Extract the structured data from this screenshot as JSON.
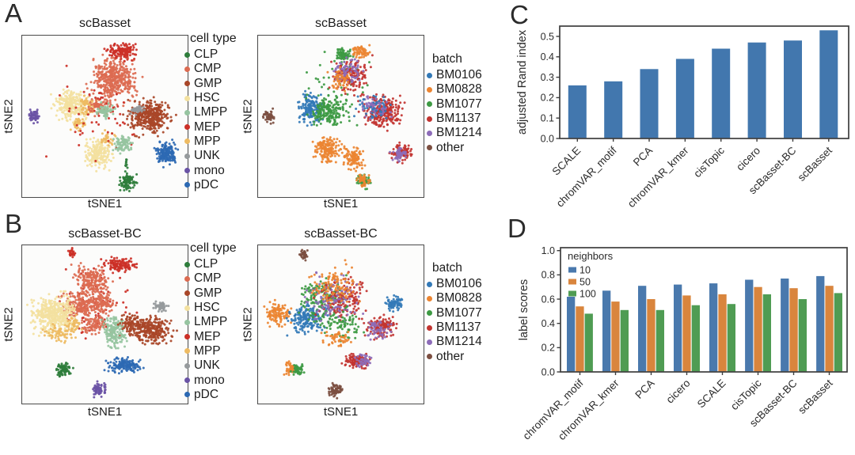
{
  "panel_labels": {
    "A": "A",
    "B": "B",
    "C": "C",
    "D": "D"
  },
  "palette": {
    "cell_type": {
      "CLP": "#2e7d3b",
      "CMP": "#dc6b51",
      "GMP": "#a94628",
      "HSC": "#f3e1a0",
      "LMPP": "#96c4a0",
      "MEP": "#cc3027",
      "MPP": "#eebb62",
      "UNK": "#969a9c",
      "mono": "#6a53a5",
      "pDC": "#2c69b3"
    },
    "batch": {
      "BM0106": "#3379b7",
      "BM0828": "#ec8532",
      "BM1077": "#3d9a43",
      "BM1137": "#c23431",
      "BM1214": "#8d6cb9",
      "other": "#7c4f41"
    }
  },
  "legends": {
    "cell_type": {
      "title": "cell type",
      "items": [
        "CLP",
        "CMP",
        "GMP",
        "HSC",
        "LMPP",
        "MEP",
        "MPP",
        "UNK",
        "mono",
        "pDC"
      ]
    },
    "batch": {
      "title": "batch",
      "items": [
        "BM0106",
        "BM0828",
        "BM1077",
        "BM1137",
        "BM1214",
        "other"
      ]
    }
  },
  "chart_data": [
    {
      "type": "scatter",
      "id": "A-left",
      "title": "scBasset",
      "color_by": "cell type",
      "color_by_key": "cell_type",
      "xlabel": "tSNE1",
      "ylabel": "tSNE2",
      "clusters_fields": [
        "color",
        "x",
        "y",
        "rx",
        "ry",
        "n"
      ],
      "clusters": [
        [
          "mono",
          0.07,
          0.5,
          0.03,
          0.035,
          55
        ],
        [
          "HSC",
          0.3,
          0.44,
          0.085,
          0.09,
          260
        ],
        [
          "HSC",
          0.46,
          0.73,
          0.075,
          0.085,
          200
        ],
        [
          "MPP",
          0.4,
          0.44,
          0.05,
          0.06,
          60
        ],
        [
          "MPP",
          0.35,
          0.55,
          0.05,
          0.04,
          35
        ],
        [
          "MPP",
          0.52,
          0.64,
          0.04,
          0.04,
          30
        ],
        [
          "CMP",
          0.56,
          0.27,
          0.12,
          0.13,
          420
        ],
        [
          "CMP",
          0.47,
          0.44,
          0.06,
          0.05,
          70
        ],
        [
          "MEP",
          0.6,
          0.1,
          0.085,
          0.05,
          130
        ],
        [
          "MEP",
          0.5,
          0.5,
          0.28,
          0.25,
          60
        ],
        [
          "GMP",
          0.77,
          0.5,
          0.115,
          0.095,
          380
        ],
        [
          "LMPP",
          0.5,
          0.47,
          0.05,
          0.04,
          60
        ],
        [
          "LMPP",
          0.61,
          0.68,
          0.055,
          0.055,
          90
        ],
        [
          "UNK",
          0.7,
          0.46,
          0.04,
          0.025,
          45
        ],
        [
          "pDC",
          0.87,
          0.73,
          0.06,
          0.065,
          170
        ],
        [
          "CLP",
          0.64,
          0.91,
          0.045,
          0.05,
          90
        ],
        [
          "CLP",
          0.63,
          0.8,
          0.01,
          0.045,
          10
        ]
      ]
    },
    {
      "type": "scatter",
      "id": "A-right",
      "title": "scBasset",
      "color_by": "batch",
      "color_by_key": "batch",
      "xlabel": "tSNE1",
      "ylabel": "tSNE2",
      "clusters_fields": [
        "color",
        "x",
        "y",
        "rx",
        "ry",
        "n"
      ],
      "clusters": [
        [
          "other",
          0.07,
          0.5,
          0.03,
          0.035,
          55
        ],
        [
          "BM0106",
          0.32,
          0.45,
          0.07,
          0.08,
          170
        ],
        [
          "BM1077",
          0.43,
          0.47,
          0.09,
          0.08,
          170
        ],
        [
          "BM1077",
          0.52,
          0.12,
          0.05,
          0.05,
          70
        ],
        [
          "BM1077",
          0.5,
          0.35,
          0.2,
          0.2,
          60
        ],
        [
          "BM1137",
          0.57,
          0.25,
          0.1,
          0.1,
          150
        ],
        [
          "BM1214",
          0.55,
          0.22,
          0.08,
          0.08,
          70
        ],
        [
          "BM0828",
          0.62,
          0.1,
          0.05,
          0.04,
          60
        ],
        [
          "BM0828",
          0.5,
          0.28,
          0.07,
          0.07,
          50
        ],
        [
          "BM1137",
          0.76,
          0.47,
          0.11,
          0.09,
          260
        ],
        [
          "BM1214",
          0.72,
          0.44,
          0.08,
          0.06,
          70
        ],
        [
          "BM0106",
          0.7,
          0.45,
          0.1,
          0.08,
          40
        ],
        [
          "BM0828",
          0.42,
          0.71,
          0.075,
          0.075,
          160
        ],
        [
          "BM0828",
          0.58,
          0.76,
          0.06,
          0.06,
          110
        ],
        [
          "BM1137",
          0.87,
          0.73,
          0.055,
          0.055,
          100
        ],
        [
          "BM1214",
          0.86,
          0.74,
          0.04,
          0.04,
          50
        ],
        [
          "BM1077",
          0.64,
          0.91,
          0.04,
          0.04,
          50
        ],
        [
          "BM0828",
          0.64,
          0.9,
          0.035,
          0.04,
          40
        ]
      ]
    },
    {
      "type": "scatter",
      "id": "B-left",
      "title": "scBasset-BC",
      "color_by": "cell type",
      "color_by_key": "cell_type",
      "xlabel": "tSNE1",
      "ylabel": "tSNE2",
      "clusters_fields": [
        "color",
        "x",
        "y",
        "rx",
        "ry",
        "n"
      ],
      "clusters": [
        [
          "MEP",
          0.3,
          0.05,
          0.02,
          0.025,
          25
        ],
        [
          "MEP",
          0.59,
          0.12,
          0.09,
          0.04,
          120
        ],
        [
          "MEP",
          0.45,
          0.35,
          0.22,
          0.22,
          70
        ],
        [
          "CMP",
          0.42,
          0.22,
          0.1,
          0.09,
          200
        ],
        [
          "CMP",
          0.34,
          0.38,
          0.1,
          0.08,
          180
        ],
        [
          "CMP",
          0.48,
          0.37,
          0.08,
          0.07,
          120
        ],
        [
          "CMP",
          0.43,
          0.5,
          0.07,
          0.06,
          90
        ],
        [
          "HSC",
          0.19,
          0.44,
          0.12,
          0.11,
          420
        ],
        [
          "MPP",
          0.22,
          0.56,
          0.08,
          0.05,
          70
        ],
        [
          "MPP",
          0.31,
          0.5,
          0.05,
          0.05,
          40
        ],
        [
          "LMPP",
          0.56,
          0.55,
          0.06,
          0.09,
          160
        ],
        [
          "UNK",
          0.84,
          0.39,
          0.04,
          0.03,
          55
        ],
        [
          "GMP",
          0.78,
          0.54,
          0.12,
          0.07,
          280
        ],
        [
          "GMP",
          0.66,
          0.49,
          0.06,
          0.05,
          80
        ],
        [
          "pDC",
          0.62,
          0.76,
          0.1,
          0.04,
          150
        ],
        [
          "CLP",
          0.25,
          0.79,
          0.045,
          0.04,
          70
        ],
        [
          "mono",
          0.47,
          0.92,
          0.04,
          0.04,
          65
        ]
      ]
    },
    {
      "type": "scatter",
      "id": "B-right",
      "title": "scBasset-BC",
      "color_by": "batch",
      "color_by_key": "batch",
      "xlabel": "tSNE1",
      "ylabel": "tSNE2",
      "clusters_fields": [
        "color",
        "x",
        "y",
        "rx",
        "ry",
        "n"
      ],
      "clusters": [
        [
          "other",
          0.28,
          0.06,
          0.025,
          0.03,
          40
        ],
        [
          "other",
          0.47,
          0.92,
          0.04,
          0.04,
          70
        ],
        [
          "BM0828",
          0.12,
          0.43,
          0.07,
          0.07,
          120
        ],
        [
          "BM0106",
          0.3,
          0.46,
          0.1,
          0.09,
          180
        ],
        [
          "BM1077",
          0.38,
          0.33,
          0.13,
          0.13,
          170
        ],
        [
          "BM1137",
          0.52,
          0.33,
          0.13,
          0.13,
          170
        ],
        [
          "BM1214",
          0.45,
          0.35,
          0.15,
          0.15,
          110
        ],
        [
          "BM0828",
          0.45,
          0.25,
          0.14,
          0.12,
          110
        ],
        [
          "BM1077",
          0.5,
          0.5,
          0.12,
          0.08,
          80
        ],
        [
          "BM1137",
          0.74,
          0.52,
          0.09,
          0.07,
          140
        ],
        [
          "BM1214",
          0.73,
          0.53,
          0.07,
          0.06,
          50
        ],
        [
          "BM0106",
          0.83,
          0.37,
          0.045,
          0.04,
          70
        ],
        [
          "BM1137",
          0.6,
          0.74,
          0.07,
          0.045,
          110
        ],
        [
          "BM1214",
          0.64,
          0.73,
          0.05,
          0.04,
          40
        ],
        [
          "BM0828",
          0.2,
          0.78,
          0.035,
          0.035,
          45
        ],
        [
          "BM1077",
          0.24,
          0.79,
          0.035,
          0.035,
          45
        ],
        [
          "BM0828",
          0.48,
          0.6,
          0.08,
          0.05,
          50
        ]
      ]
    },
    {
      "type": "bar",
      "categories": [
        "SCALE",
        "chromVAR_motif",
        "PCA",
        "chromVAR_kmer",
        "cisTopic",
        "cicero",
        "scBasset-BC",
        "scBasset"
      ],
      "values": [
        0.26,
        0.28,
        0.34,
        0.39,
        0.44,
        0.47,
        0.48,
        0.53
      ],
      "title": "",
      "xlabel": "",
      "ylabel": "adjusted Rand index",
      "ylim": [
        0,
        0.55
      ],
      "yticks": [
        0,
        0.1,
        0.2,
        0.3,
        0.4,
        0.5
      ],
      "bar_color": "#4277ae",
      "legend_position": "none"
    },
    {
      "type": "grouped_bar",
      "categories": [
        "chromVAR_motif",
        "chromVAR_kmer",
        "PCA",
        "cicero",
        "SCALE",
        "cisTopic",
        "scBasset-BC",
        "scBasset"
      ],
      "series": [
        {
          "name": "10",
          "color": "#4a79ad",
          "values": [
            0.62,
            0.67,
            0.71,
            0.72,
            0.73,
            0.76,
            0.77,
            0.79
          ]
        },
        {
          "name": "50",
          "color": "#d9853d",
          "values": [
            0.54,
            0.58,
            0.6,
            0.63,
            0.64,
            0.7,
            0.69,
            0.71
          ]
        },
        {
          "name": "100",
          "color": "#4f9c53",
          "values": [
            0.48,
            0.51,
            0.51,
            0.55,
            0.56,
            0.64,
            0.6,
            0.65
          ]
        }
      ],
      "title": "",
      "xlabel": "",
      "ylabel": "label scores",
      "ylim": [
        0,
        1.0
      ],
      "yticks": [
        0,
        0.2,
        0.4,
        0.6,
        0.8,
        1.0
      ],
      "legend_title": "neighbors",
      "legend_position": "upper-left"
    }
  ]
}
